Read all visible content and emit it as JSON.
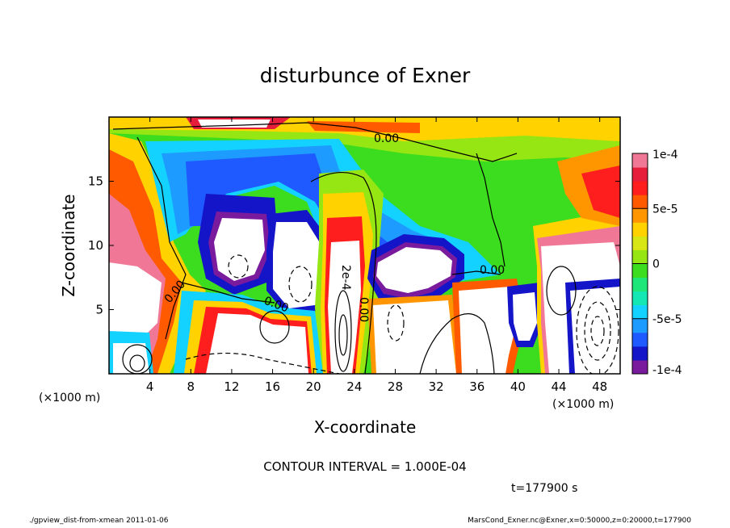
{
  "chart_data": {
    "type": "heatmap",
    "title": "disturbunce of Exner",
    "xlabel": "X-coordinate",
    "ylabel": "Z-coordinate",
    "x_unit": "(×1000 m)",
    "y_unit": "(×1000 m)",
    "xlim": [
      0,
      50
    ],
    "ylim": [
      0,
      20
    ],
    "x_ticks": [
      4,
      8,
      12,
      16,
      20,
      24,
      28,
      32,
      36,
      40,
      44,
      48
    ],
    "y_ticks": [
      5,
      10,
      15
    ],
    "colorbar": {
      "range": [
        -0.0001,
        0.0001
      ],
      "tick_labels": [
        "1e-4",
        "5e-5",
        "0",
        "-5e-5",
        "-1e-4"
      ],
      "tick_values": [
        0.0001,
        5e-05,
        0,
        -5e-05,
        -0.0001
      ],
      "colors": [
        "#7a1a9c",
        "#1414c8",
        "#1e5aff",
        "#1e9bff",
        "#14d2ff",
        "#14e6b4",
        "#1ee678",
        "#3cdc1e",
        "#96e614",
        "#d7e614",
        "#ffd200",
        "#ff9600",
        "#ff5a00",
        "#ff1e1e",
        "#e61e3c",
        "#f07896"
      ]
    },
    "contour_labels": [
      "0.00",
      "0.00",
      "0.00",
      "0.00",
      "0.00",
      "0.00",
      "2e-4"
    ],
    "annotation": "CONTOUR INTERVAL = 1.000E-04",
    "time_label": "t=177900 s"
  },
  "footer": {
    "left": "./gpview_dist-from-xmean  2011-01-06",
    "right": "MarsCond_Exner.nc@Exner,x=0:50000,z=0:20000,t=177900"
  }
}
